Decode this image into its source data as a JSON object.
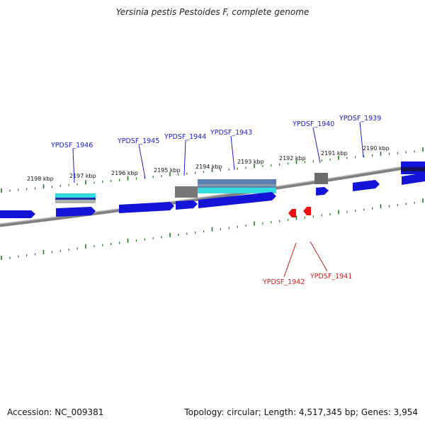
{
  "title": "Yersinia pestis Pestoides F, complete genome",
  "footer": {
    "accession": "Accession: NC_009381",
    "summary": "Topology: circular; Length: 4,517,345 bp; Genes: 3,954"
  },
  "colors": {
    "backbone": "#7a7a7a",
    "tick": "#1f7a1f",
    "gene_forward": "#1414d8",
    "gene_reverse": "#ee1111",
    "label_forward": "#1a1acc",
    "label_reverse": "#cc1a1a",
    "feature_cyan": "#33dddd",
    "feature_gray": "#777777",
    "feature_steel": "#5577aa"
  },
  "scale_labels": [
    "2198 kbp",
    "2197 kbp",
    "2196 kbp",
    "2195 kbp",
    "2194 kbp",
    "2193 kbp",
    "2192 kbp",
    "2191 kbp",
    "2190 kbp"
  ],
  "gene_labels_forward": [
    "YPDSF_1946",
    "YPDSF_1945",
    "YPDSF_1944",
    "YPDSF_1943",
    "YPDSF_1940",
    "YPDSF_1939"
  ],
  "gene_labels_reverse": [
    "YPDSF_1942",
    "YPDSF_1941"
  ]
}
